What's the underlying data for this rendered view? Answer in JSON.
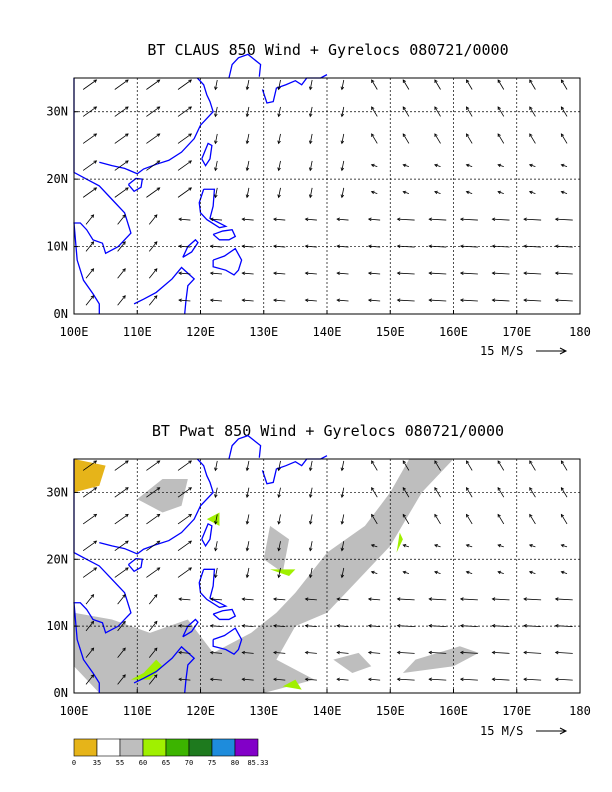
{
  "colors": {
    "coast": "#0000ff",
    "grid": "#000000",
    "shade_55_60": "#bebebe",
    "shade_60_65": "#a0f000",
    "shade_0_35": "#e6b419"
  },
  "chart_data": [
    {
      "type": "vector",
      "title": "BT CLAUS 850 Wind + Gyrelocs 080721/0000",
      "xlim": [
        100,
        180
      ],
      "ylim": [
        0,
        35
      ],
      "x_ticks": [
        "100E",
        "110E",
        "120E",
        "130E",
        "140E",
        "150E",
        "160E",
        "170E",
        "180"
      ],
      "y_ticks": [
        "0N",
        "10N",
        "20N",
        "30N"
      ],
      "reference_vector": {
        "label": "15 M/S",
        "speed": 15
      },
      "grid": "dashed at 10 degree intervals",
      "wind_field": "850 hPa winds: easterlies south of 15N, westerly monsoon flow over SE Asia, anticyclonic circulation near 150E-160E 25N-30N"
    },
    {
      "type": "vector+shaded",
      "title": "BT Pwat 850 Wind + Gyrelocs 080721/0000",
      "xlim": [
        100,
        180
      ],
      "ylim": [
        0,
        35
      ],
      "x_ticks": [
        "100E",
        "110E",
        "120E",
        "130E",
        "140E",
        "150E",
        "160E",
        "170E",
        "180"
      ],
      "y_ticks": [
        "0N",
        "10N",
        "20N",
        "30N"
      ],
      "reference_vector": {
        "label": "15 M/S",
        "speed": 15
      },
      "legend": {
        "labels": [
          "0",
          "35",
          "55",
          "60",
          "65",
          "70",
          "75",
          "80",
          "85.33"
        ],
        "colors": [
          "#e6b419",
          "#ffffff",
          "#bebebe",
          "#a0f000",
          "#3cb400",
          "#1e7a1e",
          "#1e8cdc",
          "#8200c8"
        ]
      }
    }
  ]
}
